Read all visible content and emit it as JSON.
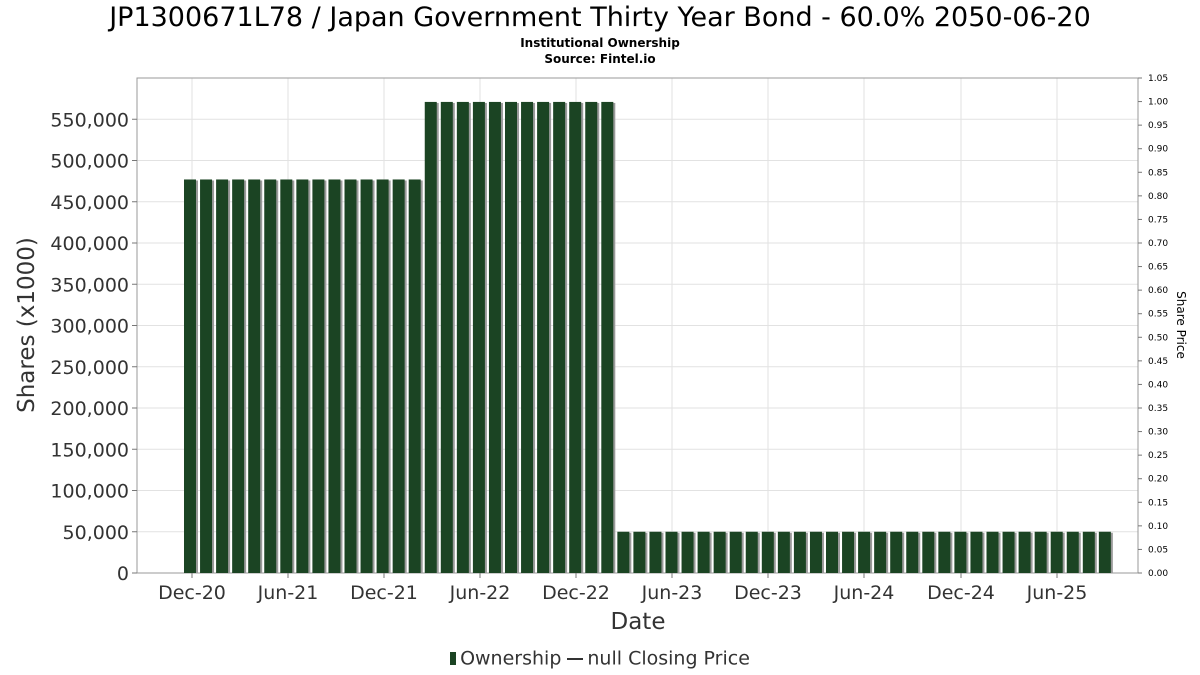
{
  "chart_data": {
    "type": "bar",
    "title": "JP1300671L78 / Japan Government Thirty Year Bond - 60.0% 2050-06-20",
    "subtitle": [
      "Institutional Ownership",
      "Source: Fintel.io"
    ],
    "xlabel": "Date",
    "ylabel": "Shares (x1000)",
    "y2label": "Share Price",
    "ylim": [
      0,
      600000
    ],
    "y2lim": [
      0,
      1.05
    ],
    "yticks": [
      "0",
      "50,000",
      "100,000",
      "150,000",
      "200,000",
      "250,000",
      "300,000",
      "350,000",
      "400,000",
      "450,000",
      "500,000",
      "550,000"
    ],
    "y2ticks": [
      "0.00",
      "0.05",
      "0.10",
      "0.15",
      "0.20",
      "0.25",
      "0.30",
      "0.35",
      "0.40",
      "0.45",
      "0.50",
      "0.55",
      "0.60",
      "0.65",
      "0.70",
      "0.75",
      "0.80",
      "0.85",
      "0.90",
      "0.95",
      "1.00",
      "1.05"
    ],
    "xticks": [
      "Dec-20",
      "Jun-21",
      "Dec-21",
      "Jun-22",
      "Dec-22",
      "Jun-23",
      "Dec-23",
      "Jun-24",
      "Dec-24",
      "Jun-25"
    ],
    "grid": true,
    "legend_position": "bottom",
    "series": [
      {
        "name": "Ownership",
        "color": "#1b4423",
        "values": [
          477000,
          477000,
          477000,
          477000,
          477000,
          477000,
          477000,
          477000,
          477000,
          477000,
          477000,
          477000,
          477000,
          477000,
          477000,
          571000,
          571000,
          571000,
          571000,
          571000,
          571000,
          571000,
          571000,
          571000,
          571000,
          571000,
          571000,
          50000,
          50000,
          50000,
          50000,
          50000,
          50000,
          50000,
          50000,
          50000,
          50000,
          50000,
          50000,
          50000,
          50000,
          50000,
          50000,
          50000,
          50000,
          50000,
          50000,
          50000,
          50000,
          50000,
          50000,
          50000,
          50000,
          50000,
          50000,
          50000,
          50000,
          50000
        ]
      }
    ],
    "legend": [
      "Ownership",
      "null Closing Price"
    ]
  }
}
